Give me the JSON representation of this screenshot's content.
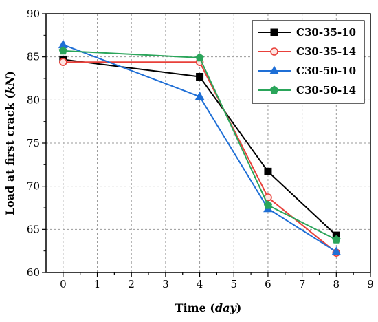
{
  "chart_data": {
    "type": "line",
    "xlabel_parts": [
      "Time (",
      "day",
      ")"
    ],
    "ylabel_parts": [
      "Load at first crack (",
      "kN",
      ")"
    ],
    "xlim": [
      -0.5,
      9
    ],
    "ylim": [
      60,
      90
    ],
    "xticks": [
      0,
      1,
      2,
      3,
      4,
      5,
      6,
      7,
      8,
      9
    ],
    "yticks": [
      60,
      65,
      70,
      75,
      80,
      85,
      90
    ],
    "grid": true,
    "legend_position": "top-right",
    "series": [
      {
        "name": "C30-35-10",
        "color": "#000000",
        "marker": "square",
        "x": [
          0,
          4,
          6,
          8
        ],
        "y": [
          84.7,
          82.7,
          71.7,
          64.3
        ]
      },
      {
        "name": "C30-35-14",
        "color": "#e8403a",
        "marker": "circle",
        "x": [
          0,
          4,
          6,
          8
        ],
        "y": [
          84.4,
          84.4,
          68.7,
          62.3
        ]
      },
      {
        "name": "C30-50-10",
        "color": "#1f6fd6",
        "marker": "triangle",
        "x": [
          0,
          4,
          6,
          8
        ],
        "y": [
          86.4,
          80.4,
          67.4,
          62.4
        ]
      },
      {
        "name": "C30-50-14",
        "color": "#2aa55a",
        "marker": "pentagon",
        "x": [
          0,
          4,
          6,
          8
        ],
        "y": [
          85.7,
          84.9,
          67.8,
          63.8
        ]
      }
    ]
  }
}
